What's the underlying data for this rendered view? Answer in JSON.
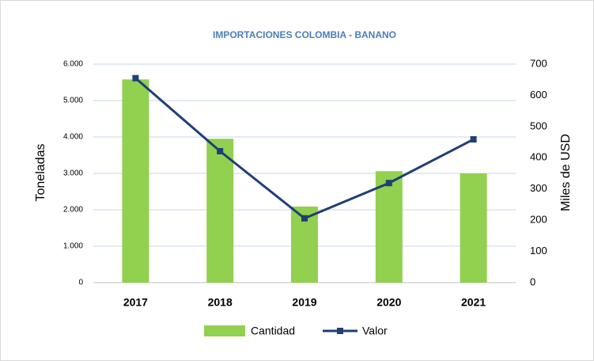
{
  "chart_data": {
    "type": "bar",
    "title": "IMPORTACIONES COLOMBIA - BANANO",
    "categories": [
      "2017",
      "2018",
      "2019",
      "2020",
      "2021"
    ],
    "series": [
      {
        "name": "Cantidad",
        "type": "bar",
        "color": "#92d050",
        "values": [
          5580,
          3950,
          2090,
          3060,
          3000
        ]
      },
      {
        "name": "Valor",
        "type": "line",
        "axis": "y2",
        "color": "#203f73",
        "values": [
          655,
          421,
          206,
          319,
          459
        ]
      }
    ],
    "ylabel": "Toneladas",
    "y2label": "Miles de USD",
    "ylim": [
      0,
      6000
    ],
    "yticks": [
      0,
      {
        "value": 1000,
        "label": "1.000"
      },
      {
        "value": 2000,
        "label": "2.000"
      },
      {
        "value": 3000,
        "label": "3.000"
      },
      {
        "value": 4000,
        "label": "4.000"
      },
      {
        "value": 5000,
        "label": "5.000"
      },
      {
        "value": 6000,
        "label": "6.000"
      }
    ],
    "y2lim": [
      0,
      700
    ],
    "y2ticks": [
      0,
      100,
      200,
      300,
      400,
      500,
      600,
      700
    ],
    "grid": true,
    "legend": "bottom"
  }
}
